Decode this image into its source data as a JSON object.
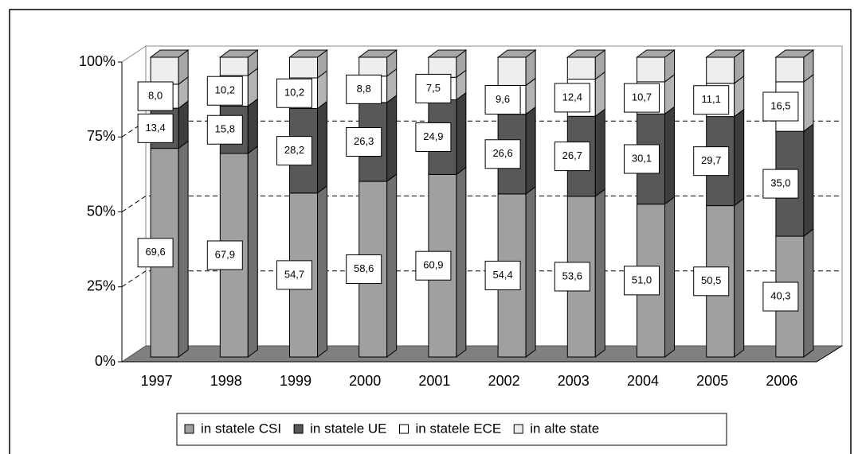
{
  "chart_data": {
    "type": "bar",
    "stacked": true,
    "categories": [
      "1997",
      "1998",
      "1999",
      "2000",
      "2001",
      "2002",
      "2003",
      "2004",
      "2005",
      "2006"
    ],
    "series": [
      {
        "name": "in statele CSI",
        "color": "#a0a0a0",
        "values": [
          69.6,
          67.9,
          54.7,
          58.6,
          60.9,
          54.4,
          53.6,
          51.0,
          50.5,
          40.3
        ],
        "value_labels": [
          "69,6",
          "67,9",
          "54,7",
          "58,6",
          "60,9",
          "54,4",
          "53,6",
          "51,0",
          "50,5",
          "40,3"
        ]
      },
      {
        "name": "in statele UE",
        "color": "#585858",
        "values": [
          13.4,
          15.8,
          28.2,
          26.3,
          24.9,
          26.6,
          26.7,
          30.1,
          29.7,
          35.0
        ],
        "value_labels": [
          "13,4",
          "15,8",
          "28,2",
          "26,3",
          "24,9",
          "26,6",
          "26,7",
          "30,1",
          "29,7",
          "35,0"
        ]
      },
      {
        "name": "in statele ECE",
        "color": "#ffffff",
        "values": [
          8.0,
          10.2,
          10.2,
          8.8,
          7.5,
          9.6,
          12.4,
          10.7,
          11.1,
          16.5
        ],
        "value_labels": [
          "8,0",
          "10,2",
          "10,2",
          "8,8",
          "7,5",
          "9,6",
          "12,4",
          "10,7",
          "11,1",
          "16,5"
        ]
      },
      {
        "name": "in alte state",
        "color": "#eeeeee",
        "values": [
          9.0,
          6.1,
          6.9,
          6.3,
          6.7,
          9.4,
          7.3,
          8.2,
          8.7,
          8.2
        ]
      }
    ],
    "ylim": [
      0,
      100
    ],
    "yticks": [
      {
        "value": 0,
        "label": "0%"
      },
      {
        "value": 25,
        "label": "25%"
      },
      {
        "value": 50,
        "label": "50%"
      },
      {
        "value": 75,
        "label": "75%"
      },
      {
        "value": 100,
        "label": "100%"
      }
    ],
    "grid": true,
    "legend": "bottom"
  }
}
